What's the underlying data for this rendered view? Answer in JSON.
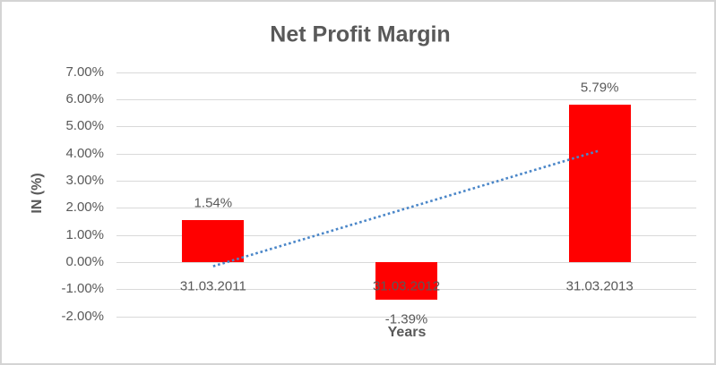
{
  "chart_data": {
    "type": "bar",
    "title": "Net Profit Margin",
    "xlabel": "Years",
    "ylabel": "IN (%)",
    "categories": [
      "31.03.2011",
      "31.03.2012",
      "31.03.2013"
    ],
    "values": [
      1.54,
      -1.39,
      5.79
    ],
    "data_labels": [
      "1.54%",
      "-1.39%",
      "5.79%"
    ],
    "y_ticks": [
      7,
      6,
      5,
      4,
      3,
      2,
      1,
      0,
      -1,
      -2
    ],
    "y_tick_labels": [
      "7.00%",
      "6.00%",
      "5.00%",
      "4.00%",
      "3.00%",
      "2.00%",
      "1.00%",
      "0.00%",
      "-1.00%",
      "-2.00%"
    ],
    "ylim": [
      -2,
      7
    ],
    "grid": true,
    "legend": false,
    "bar_color": "#ff0000",
    "text_color": "#595959",
    "gridline_color": "#d9d9d9",
    "trendline": {
      "type": "linear",
      "style": "dotted",
      "color": "#4a86c8",
      "start_value": -0.15,
      "end_value": 4.11
    }
  }
}
